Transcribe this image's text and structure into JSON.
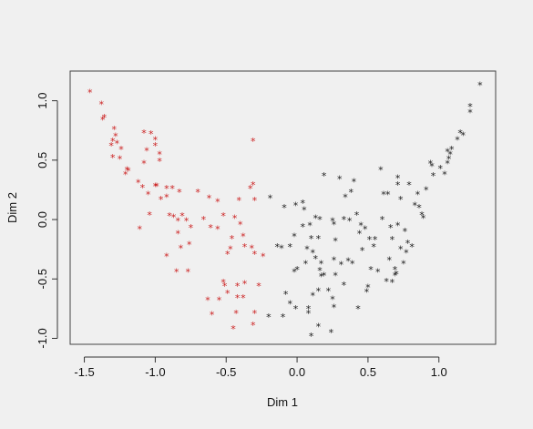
{
  "chart_data": {
    "type": "scatter",
    "title": "",
    "xlabel": "Dim 1",
    "ylabel": "Dim 2",
    "xlim": [
      -1.6,
      1.4
    ],
    "ylim": [
      -1.05,
      1.25
    ],
    "x_ticks": [
      {
        "value": -1.5,
        "label": "-1.5"
      },
      {
        "value": -1.0,
        "label": "-1.0"
      },
      {
        "value": -0.5,
        "label": "-0.5"
      },
      {
        "value": 0.0,
        "label": "0.0"
      },
      {
        "value": 0.5,
        "label": "0.5"
      },
      {
        "value": 1.0,
        "label": "1.0"
      }
    ],
    "y_ticks": [
      {
        "value": -1.0,
        "label": "-1.0"
      },
      {
        "value": -0.5,
        "label": "-0.5"
      },
      {
        "value": 0.0,
        "label": "0.0"
      },
      {
        "value": 0.5,
        "label": "0.5"
      },
      {
        "value": 1.0,
        "label": "1.0"
      }
    ],
    "marker": "*",
    "grid": false,
    "legend": "none",
    "series": [
      {
        "color": "#cc2222",
        "points": [
          [
            -1.46,
            1.07
          ],
          [
            -1.38,
            0.97
          ],
          [
            -1.36,
            0.86
          ],
          [
            -1.37,
            0.84
          ],
          [
            -1.29,
            0.76
          ],
          [
            -1.28,
            0.7
          ],
          [
            -1.3,
            0.66
          ],
          [
            -1.27,
            0.64
          ],
          [
            -1.31,
            0.62
          ],
          [
            -1.24,
            0.59
          ],
          [
            -1.3,
            0.52
          ],
          [
            -1.25,
            0.51
          ],
          [
            -1.08,
            0.73
          ],
          [
            -1.03,
            0.72
          ],
          [
            -1.0,
            0.67
          ],
          [
            -1.0,
            0.62
          ],
          [
            -0.97,
            0.55
          ],
          [
            -1.06,
            0.58
          ],
          [
            -1.08,
            0.47
          ],
          [
            -0.97,
            0.49
          ],
          [
            -0.31,
            0.66
          ],
          [
            -1.2,
            0.42
          ],
          [
            -1.21,
            0.38
          ],
          [
            -1.19,
            0.41
          ],
          [
            -1.12,
            0.31
          ],
          [
            -1.09,
            0.27
          ],
          [
            -1.05,
            0.21
          ],
          [
            -1.0,
            0.28
          ],
          [
            -0.99,
            0.28
          ],
          [
            -0.92,
            0.26
          ],
          [
            -0.88,
            0.26
          ],
          [
            -0.92,
            0.19
          ],
          [
            -0.96,
            0.17
          ],
          [
            -1.04,
            0.04
          ],
          [
            -0.83,
            0.23
          ],
          [
            -0.7,
            0.23
          ],
          [
            -0.62,
            0.18
          ],
          [
            -0.56,
            0.15
          ],
          [
            -0.41,
            0.16
          ],
          [
            -0.33,
            0.26
          ],
          [
            -0.31,
            0.29
          ],
          [
            -0.3,
            0.16
          ],
          [
            -0.9,
            0.03
          ],
          [
            -0.87,
            0.02
          ],
          [
            -0.84,
            -0.01
          ],
          [
            -0.81,
            0.03
          ],
          [
            -0.78,
            -0.01
          ],
          [
            -0.66,
            0.0
          ],
          [
            -0.52,
            0.03
          ],
          [
            -0.44,
            0.01
          ],
          [
            -0.4,
            -0.04
          ],
          [
            -1.11,
            -0.08
          ],
          [
            -0.84,
            -0.12
          ],
          [
            -0.75,
            -0.07
          ],
          [
            -0.61,
            -0.07
          ],
          [
            -0.56,
            -0.08
          ],
          [
            -0.46,
            -0.16
          ],
          [
            -0.38,
            -0.14
          ],
          [
            -0.76,
            -0.21
          ],
          [
            -0.82,
            -0.24
          ],
          [
            -0.92,
            -0.31
          ],
          [
            -0.49,
            -0.29
          ],
          [
            -0.47,
            -0.25
          ],
          [
            -0.37,
            -0.23
          ],
          [
            -0.32,
            -0.24
          ],
          [
            -0.3,
            -0.29
          ],
          [
            -0.24,
            -0.31
          ],
          [
            -0.85,
            -0.44
          ],
          [
            -0.77,
            -0.44
          ],
          [
            -0.52,
            -0.53
          ],
          [
            -0.51,
            -0.56
          ],
          [
            -0.42,
            -0.56
          ],
          [
            -0.37,
            -0.54
          ],
          [
            -0.27,
            -0.56
          ],
          [
            -0.63,
            -0.68
          ],
          [
            -0.55,
            -0.68
          ],
          [
            -0.49,
            -0.62
          ],
          [
            -0.42,
            -0.66
          ],
          [
            -0.38,
            -0.66
          ],
          [
            -0.6,
            -0.8
          ],
          [
            -0.43,
            -0.79
          ],
          [
            -0.3,
            -0.79
          ],
          [
            -0.45,
            -0.92
          ],
          [
            -0.31,
            -0.89
          ]
        ]
      },
      {
        "color": "#1a1a1a",
        "points": [
          [
            -0.19,
            0.18
          ],
          [
            -0.09,
            0.1
          ],
          [
            -0.01,
            0.12
          ],
          [
            0.04,
            0.14
          ],
          [
            0.13,
            0.01
          ],
          [
            0.16,
            0.0
          ],
          [
            0.05,
            0.08
          ],
          [
            0.04,
            -0.06
          ],
          [
            -0.14,
            -0.23
          ],
          [
            -0.11,
            -0.24
          ],
          [
            -0.05,
            -0.23
          ],
          [
            -0.02,
            -0.14
          ],
          [
            0.09,
            -0.05
          ],
          [
            0.1,
            -0.16
          ],
          [
            0.15,
            -0.16
          ],
          [
            0.25,
            -0.01
          ],
          [
            0.26,
            -0.04
          ],
          [
            0.27,
            -0.18
          ],
          [
            0.07,
            -0.25
          ],
          [
            0.11,
            -0.28
          ],
          [
            0.13,
            -0.33
          ],
          [
            0.06,
            -0.37
          ],
          [
            0.0,
            -0.42
          ],
          [
            -0.02,
            -0.44
          ],
          [
            0.17,
            -0.37
          ],
          [
            0.16,
            -0.43
          ],
          [
            0.17,
            -0.48
          ],
          [
            0.19,
            -0.47
          ],
          [
            0.26,
            -0.34
          ],
          [
            0.27,
            -0.47
          ],
          [
            0.31,
            -0.38
          ],
          [
            0.36,
            -0.35
          ],
          [
            0.33,
            -0.55
          ],
          [
            0.22,
            -0.6
          ],
          [
            0.25,
            -0.67
          ],
          [
            0.26,
            -0.74
          ],
          [
            0.15,
            -0.6
          ],
          [
            0.11,
            -0.64
          ],
          [
            0.08,
            -0.75
          ],
          [
            0.08,
            -0.79
          ],
          [
            -0.08,
            -0.63
          ],
          [
            -0.05,
            -0.71
          ],
          [
            -0.01,
            -0.75
          ],
          [
            -0.1,
            -0.82
          ],
          [
            -0.2,
            -0.82
          ],
          [
            0.15,
            -0.9
          ],
          [
            0.24,
            -0.95
          ],
          [
            0.1,
            -0.98
          ],
          [
            0.19,
            0.37
          ],
          [
            0.3,
            0.34
          ],
          [
            0.34,
            0.19
          ],
          [
            0.38,
            0.23
          ],
          [
            0.4,
            0.32
          ],
          [
            0.33,
            0.0
          ],
          [
            0.37,
            -0.01
          ],
          [
            0.42,
            0.04
          ],
          [
            0.45,
            -0.05
          ],
          [
            0.48,
            -0.08
          ],
          [
            0.51,
            -0.17
          ],
          [
            0.54,
            -0.23
          ],
          [
            0.55,
            -0.17
          ],
          [
            0.52,
            -0.42
          ],
          [
            0.57,
            -0.44
          ],
          [
            0.5,
            -0.57
          ],
          [
            0.49,
            -0.61
          ],
          [
            0.43,
            -0.75
          ],
          [
            0.39,
            -0.37
          ],
          [
            0.44,
            -0.12
          ],
          [
            0.46,
            -0.26
          ],
          [
            0.59,
            0.42
          ],
          [
            0.61,
            0.21
          ],
          [
            0.64,
            0.21
          ],
          [
            0.6,
            0.0
          ],
          [
            0.66,
            -0.07
          ],
          [
            0.67,
            -0.17
          ],
          [
            0.73,
            -0.25
          ],
          [
            0.65,
            -0.34
          ],
          [
            0.69,
            -0.47
          ],
          [
            0.63,
            -0.52
          ],
          [
            0.67,
            -0.53
          ],
          [
            0.71,
            -0.05
          ],
          [
            0.76,
            -0.1
          ],
          [
            0.78,
            -0.2
          ],
          [
            0.81,
            -0.23
          ],
          [
            0.77,
            -0.28
          ],
          [
            0.75,
            -0.37
          ],
          [
            0.69,
            -0.42
          ],
          [
            0.7,
            -0.46
          ],
          [
            0.71,
            0.35
          ],
          [
            0.71,
            0.29
          ],
          [
            0.79,
            0.29
          ],
          [
            0.73,
            0.17
          ],
          [
            0.83,
            0.12
          ],
          [
            0.86,
            0.1
          ],
          [
            0.88,
            0.04
          ],
          [
            0.85,
            0.21
          ],
          [
            0.91,
            0.25
          ],
          [
            0.89,
            0.01
          ],
          [
            0.94,
            0.47
          ],
          [
            0.95,
            0.45
          ],
          [
            0.96,
            0.37
          ],
          [
            1.01,
            0.43
          ],
          [
            1.04,
            0.38
          ],
          [
            1.06,
            0.47
          ],
          [
            1.06,
            0.57
          ],
          [
            1.08,
            0.55
          ],
          [
            1.07,
            0.51
          ],
          [
            1.09,
            0.59
          ],
          [
            1.13,
            0.67
          ],
          [
            1.15,
            0.73
          ],
          [
            1.17,
            0.71
          ],
          [
            1.22,
            0.9
          ],
          [
            1.22,
            0.95
          ],
          [
            1.29,
            1.13
          ]
        ]
      }
    ]
  }
}
